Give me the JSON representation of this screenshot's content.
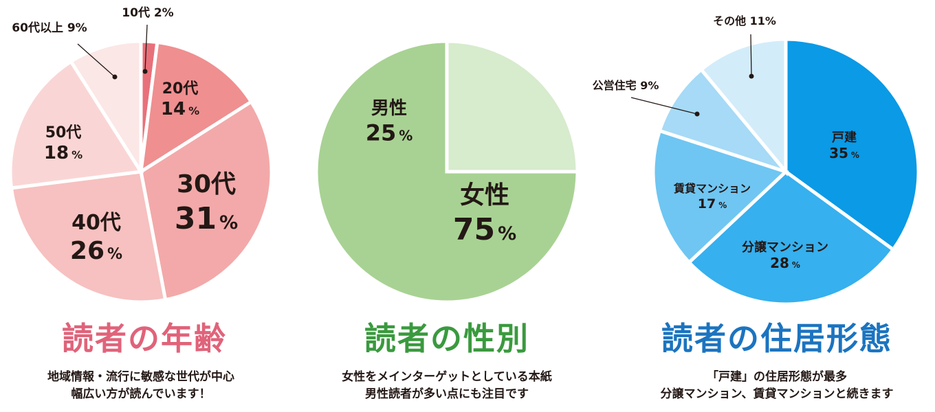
{
  "charts": [
    {
      "title": "読者の年齢",
      "title_color": "#e0637a",
      "caption": [
        "地域情報・流行に敏感な世代が中心",
        "幅広い方が読んでいます！"
      ],
      "chart_data": {
        "type": "pie",
        "title": "読者の年齢",
        "slices": [
          {
            "label": "10代",
            "value": 2,
            "display": "2%",
            "color": "#e8707a"
          },
          {
            "label": "20代",
            "value": 14,
            "display": "14%",
            "color": "#ef8f90"
          },
          {
            "label": "30代",
            "value": 31,
            "display": "31%",
            "color": "#f3a9a9"
          },
          {
            "label": "40代",
            "value": 26,
            "display": "26%",
            "color": "#f6c1c0"
          },
          {
            "label": "50代",
            "value": 18,
            "display": "18%",
            "color": "#f9d6d5"
          },
          {
            "label": "60代以上",
            "value": 9,
            "display": "9%",
            "color": "#fbe7e6"
          }
        ]
      }
    },
    {
      "title": "読者の性別",
      "title_color": "#3a9a3e",
      "caption": [
        "女性をメインターゲットとしている本紙",
        "男性読者が多い点にも注目です"
      ],
      "chart_data": {
        "type": "pie",
        "title": "読者の性別",
        "slices": [
          {
            "label": "女性",
            "value": 75,
            "display": "75%",
            "color": "#a8d293"
          },
          {
            "label": "男性",
            "value": 25,
            "display": "25%",
            "color": "#d7ebcd"
          }
        ]
      }
    },
    {
      "title": "読者の住居形態",
      "title_color": "#1b74c0",
      "caption": [
        "「戸建」の住居形態が最多",
        "分譲マンション、賃貸マンションと続きます"
      ],
      "chart_data": {
        "type": "pie",
        "title": "読者の住居形態",
        "slices": [
          {
            "label": "戸建",
            "value": 35,
            "display": "35%",
            "color": "#0a9ae6"
          },
          {
            "label": "分譲マンション",
            "value": 28,
            "display": "28%",
            "color": "#36b0ee"
          },
          {
            "label": "賃貸マンション",
            "value": 17,
            "display": "17%",
            "color": "#6fc6f2"
          },
          {
            "label": "公営住宅",
            "value": 9,
            "display": "9%",
            "color": "#a6daf6"
          },
          {
            "label": "その他",
            "value": 11,
            "display": "11%",
            "color": "#d3ecfa"
          }
        ]
      }
    }
  ]
}
